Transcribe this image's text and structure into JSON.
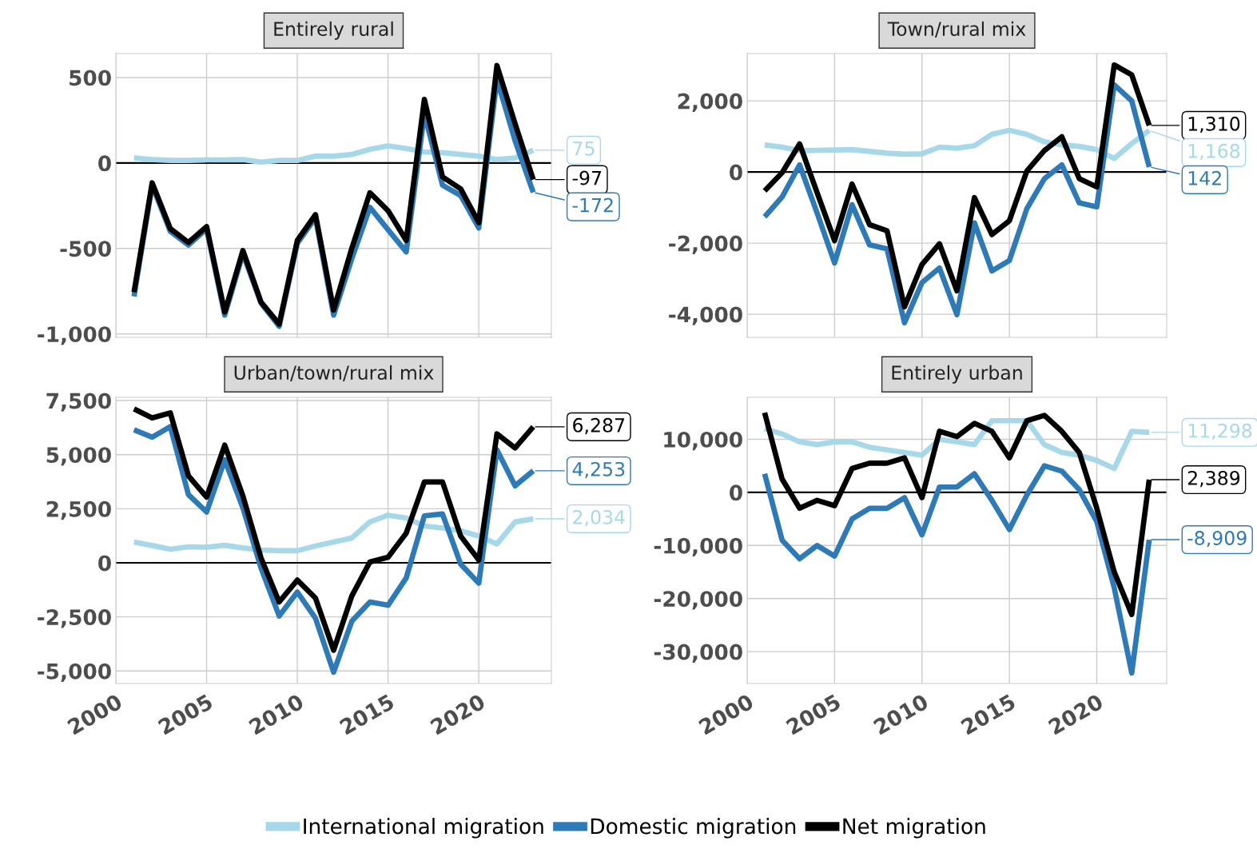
{
  "chart_data": [
    {
      "type": "line",
      "title": "Entirely rural",
      "x": [
        2001,
        2002,
        2003,
        2004,
        2005,
        2006,
        2007,
        2008,
        2009,
        2010,
        2011,
        2012,
        2013,
        2014,
        2015,
        2016,
        2017,
        2018,
        2019,
        2020,
        2021,
        2022,
        2023
      ],
      "series": [
        {
          "name": "International migration",
          "color": "#a6d8ea",
          "values": [
            30,
            20,
            15,
            15,
            18,
            18,
            20,
            5,
            15,
            15,
            40,
            40,
            50,
            80,
            100,
            85,
            65,
            60,
            50,
            40,
            20,
            30,
            75
          ],
          "value_labels": [
            null,
            null,
            null,
            null,
            null,
            null,
            null,
            null,
            null,
            null,
            null,
            null,
            null,
            null,
            null,
            null,
            null,
            null,
            null,
            null,
            null,
            null,
            "75"
          ]
        },
        {
          "name": "Domestic migration",
          "color": "#2e7ab6",
          "values": [
            -780,
            -130,
            -400,
            -480,
            -385,
            -890,
            -530,
            -820,
            -955,
            -470,
            -320,
            -890,
            -560,
            -260,
            -390,
            -520,
            290,
            -130,
            -190,
            -380,
            490,
            130,
            -172
          ],
          "value_labels": [
            null,
            null,
            null,
            null,
            null,
            null,
            null,
            null,
            null,
            null,
            null,
            null,
            null,
            null,
            null,
            null,
            null,
            null,
            null,
            null,
            null,
            null,
            "-172"
          ]
        },
        {
          "name": "Net migration",
          "color": "#000000",
          "values": [
            -756,
            -116,
            -384,
            -465,
            -372,
            -872,
            -512,
            -814,
            -942,
            -453,
            -302,
            -860,
            -500,
            -174,
            -279,
            -453,
            372,
            -81,
            -151,
            -349,
            570,
            230,
            -97
          ],
          "value_labels": [
            null,
            null,
            null,
            null,
            null,
            null,
            null,
            null,
            null,
            null,
            null,
            null,
            null,
            null,
            null,
            null,
            null,
            null,
            null,
            null,
            null,
            null,
            "-97"
          ]
        }
      ],
      "xlim": [
        2000,
        2024
      ],
      "xticks": [
        2000,
        2005,
        2010,
        2015,
        2020
      ],
      "ylim": [
        -1020,
        640
      ],
      "yticks": [
        {
          "value": -1000,
          "label": "-1,000"
        },
        -500,
        0,
        500
      ],
      "ref_lines": [
        {
          "axis": "y",
          "value": 0,
          "color": "#000000"
        }
      ],
      "grid": true,
      "legend": "bottom",
      "tick_labels": "y"
    },
    {
      "type": "line",
      "title": "Town/rural mix",
      "x": [
        2001,
        2002,
        2003,
        2004,
        2005,
        2006,
        2007,
        2008,
        2009,
        2010,
        2011,
        2012,
        2013,
        2014,
        2015,
        2016,
        2017,
        2018,
        2019,
        2020,
        2021,
        2022,
        2023
      ],
      "series": [
        {
          "name": "International migration",
          "color": "#a6d8ea",
          "values": [
            760,
            700,
            600,
            610,
            620,
            630,
            580,
            530,
            500,
            510,
            700,
            670,
            740,
            1060,
            1170,
            1060,
            850,
            760,
            720,
            630,
            380,
            800,
            1168
          ],
          "value_labels": [
            null,
            null,
            null,
            null,
            null,
            null,
            null,
            null,
            null,
            null,
            null,
            null,
            null,
            null,
            null,
            null,
            null,
            null,
            null,
            null,
            null,
            null,
            "1,168"
          ]
        },
        {
          "name": "Domestic migration",
          "color": "#2e7ab6",
          "values": [
            -1260,
            -700,
            200,
            -1150,
            -2560,
            -920,
            -2050,
            -2160,
            -4240,
            -3110,
            -2700,
            -4010,
            -1430,
            -2780,
            -2490,
            -1030,
            -190,
            200,
            -870,
            -980,
            2450,
            2000,
            142
          ],
          "value_labels": [
            null,
            null,
            null,
            null,
            null,
            null,
            null,
            null,
            null,
            null,
            null,
            null,
            null,
            null,
            null,
            null,
            null,
            null,
            null,
            null,
            null,
            null,
            "142"
          ]
        },
        {
          "name": "Net migration",
          "color": "#000000",
          "values": [
            -530,
            -20,
            790,
            -580,
            -1930,
            -340,
            -1480,
            -1650,
            -3790,
            -2600,
            -2020,
            -3340,
            -720,
            -1760,
            -1370,
            30,
            600,
            990,
            -190,
            -420,
            3010,
            2730,
            1310
          ],
          "value_labels": [
            null,
            null,
            null,
            null,
            null,
            null,
            null,
            null,
            null,
            null,
            null,
            null,
            null,
            null,
            null,
            null,
            null,
            null,
            null,
            null,
            null,
            null,
            "1,310"
          ]
        }
      ],
      "xlim": [
        2000,
        2024
      ],
      "xticks": [
        2000,
        2005,
        2010,
        2015,
        2020
      ],
      "ylim": [
        -4650,
        3330
      ],
      "yticks": [
        {
          "value": -4000,
          "label": "-4,000"
        },
        {
          "value": -2000,
          "label": "-2,000"
        },
        0,
        {
          "value": 2000,
          "label": "2,000"
        }
      ],
      "ref_lines": [
        {
          "axis": "y",
          "value": 0,
          "color": "#000000"
        }
      ],
      "grid": true,
      "legend": "bottom",
      "tick_labels": "y"
    },
    {
      "type": "line",
      "title": "Urban/town/rural mix",
      "x": [
        2001,
        2002,
        2003,
        2004,
        2005,
        2006,
        2007,
        2008,
        2009,
        2010,
        2011,
        2012,
        2013,
        2014,
        2015,
        2016,
        2017,
        2018,
        2019,
        2020,
        2021,
        2022,
        2023
      ],
      "series": [
        {
          "name": "International migration",
          "color": "#a6d8ea",
          "values": [
            960,
            800,
            630,
            740,
            720,
            810,
            690,
            590,
            560,
            560,
            780,
            960,
            1150,
            1890,
            2200,
            2070,
            1700,
            1610,
            1480,
            1240,
            870,
            1890,
            2034
          ],
          "value_labels": [
            null,
            null,
            null,
            null,
            null,
            null,
            null,
            null,
            null,
            null,
            null,
            null,
            null,
            null,
            null,
            null,
            null,
            null,
            null,
            null,
            null,
            null,
            "2,034"
          ]
        },
        {
          "name": "Domestic migration",
          "color": "#2e7ab6",
          "values": [
            6150,
            5810,
            6300,
            3150,
            2350,
            4760,
            2540,
            -240,
            -2460,
            -1350,
            -2560,
            -5060,
            -2700,
            -1810,
            -1960,
            -700,
            2170,
            2260,
            -60,
            -940,
            5220,
            3560,
            4253
          ],
          "value_labels": [
            null,
            null,
            null,
            null,
            null,
            null,
            null,
            null,
            null,
            null,
            null,
            null,
            null,
            null,
            null,
            null,
            null,
            null,
            null,
            null,
            null,
            null,
            "4,253"
          ]
        },
        {
          "name": "Net migration",
          "color": "#000000",
          "values": [
            7110,
            6700,
            6930,
            4020,
            3040,
            5440,
            3090,
            220,
            -1810,
            -800,
            -1630,
            -4040,
            -1540,
            40,
            260,
            1370,
            3740,
            3740,
            1240,
            130,
            5960,
            5310,
            6287
          ],
          "value_labels": [
            null,
            null,
            null,
            null,
            null,
            null,
            null,
            null,
            null,
            null,
            null,
            null,
            null,
            null,
            null,
            null,
            null,
            null,
            null,
            null,
            null,
            null,
            "6,287"
          ]
        }
      ],
      "xlim": [
        2000,
        2024
      ],
      "xticks": [
        2000,
        2005,
        2010,
        2015,
        2020
      ],
      "ylim": [
        -5580,
        7650
      ],
      "yticks": [
        {
          "value": -5000,
          "label": "-5,000"
        },
        {
          "value": -2500,
          "label": "-2,500"
        },
        0,
        {
          "value": 2500,
          "label": "2,500"
        },
        {
          "value": 5000,
          "label": "5,000"
        },
        {
          "value": 7500,
          "label": "7,500"
        }
      ],
      "ref_lines": [
        {
          "axis": "y",
          "value": 0,
          "color": "#000000"
        }
      ],
      "grid": true,
      "legend": "bottom"
    },
    {
      "type": "line",
      "title": "Entirely urban",
      "x": [
        2001,
        2002,
        2003,
        2004,
        2005,
        2006,
        2007,
        2008,
        2009,
        2010,
        2011,
        2012,
        2013,
        2014,
        2015,
        2016,
        2017,
        2018,
        2019,
        2020,
        2021,
        2022,
        2023
      ],
      "series": [
        {
          "name": "International migration",
          "color": "#a6d8ea",
          "values": [
            12000,
            11000,
            9500,
            9000,
            9500,
            9500,
            8500,
            8000,
            7500,
            7000,
            10000,
            9500,
            9000,
            13500,
            13500,
            13500,
            9000,
            7500,
            7000,
            6000,
            4500,
            11500,
            11298
          ],
          "value_labels": [
            null,
            null,
            null,
            null,
            null,
            null,
            null,
            null,
            null,
            null,
            null,
            null,
            null,
            null,
            null,
            null,
            null,
            null,
            null,
            null,
            null,
            null,
            "11,298"
          ]
        },
        {
          "name": "Domestic migration",
          "color": "#2e7ab6",
          "values": [
            3500,
            -9000,
            -12500,
            -10000,
            -12000,
            -5000,
            -3000,
            -3000,
            -1000,
            -8000,
            1000,
            1000,
            3500,
            -1500,
            -7000,
            -500,
            5000,
            4000,
            500,
            -5500,
            -18000,
            -34000,
            -8909
          ],
          "value_labels": [
            null,
            null,
            null,
            null,
            null,
            null,
            null,
            null,
            null,
            null,
            null,
            null,
            null,
            null,
            null,
            null,
            null,
            null,
            null,
            null,
            null,
            null,
            "-8,909"
          ]
        },
        {
          "name": "Net migration",
          "color": "#000000",
          "values": [
            15000,
            2500,
            -3000,
            -1500,
            -2500,
            4500,
            5500,
            5500,
            6500,
            -1000,
            11500,
            10500,
            13000,
            11500,
            6500,
            13500,
            14500,
            11500,
            7500,
            -3000,
            -15000,
            -23000,
            2389
          ],
          "value_labels": [
            null,
            null,
            null,
            null,
            null,
            null,
            null,
            null,
            null,
            null,
            null,
            null,
            null,
            null,
            null,
            null,
            null,
            null,
            null,
            null,
            null,
            null,
            "2,389"
          ]
        }
      ],
      "xlim": [
        2000,
        2024
      ],
      "xticks": [
        2000,
        2005,
        2010,
        2015,
        2020
      ],
      "ylim": [
        -36000,
        17900
      ],
      "yticks": [
        {
          "value": -30000,
          "label": "-30,000"
        },
        {
          "value": -20000,
          "label": "-20,000"
        },
        {
          "value": -10000,
          "label": "-10,000"
        },
        0,
        {
          "value": 10000,
          "label": "10,000"
        }
      ],
      "ref_lines": [
        {
          "axis": "y",
          "value": 0,
          "color": "#000000"
        }
      ],
      "grid": true,
      "legend": "bottom"
    }
  ]
}
